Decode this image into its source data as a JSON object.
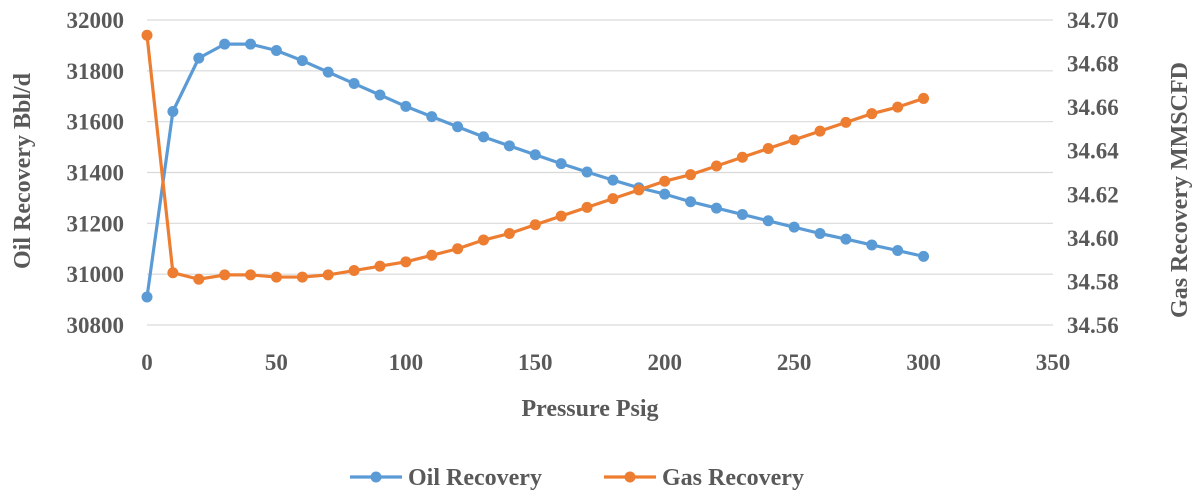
{
  "chart_data": {
    "type": "line",
    "title": "",
    "xlabel": "Pressure Psig",
    "ylabel": "Oil Recovery Bbl/d",
    "y2label": "Gas Recovery MMSCFD",
    "xlim": [
      0,
      350
    ],
    "ylim": [
      30800,
      32000
    ],
    "y2lim": [
      34.56,
      34.7
    ],
    "x_ticks": [
      "0",
      "50",
      "100",
      "150",
      "200",
      "250",
      "300",
      "350"
    ],
    "y_ticks": [
      "30800",
      "31000",
      "31200",
      "31400",
      "31600",
      "31800",
      "32000"
    ],
    "y2_ticks": [
      "34.56",
      "34.58",
      "34.60",
      "34.62",
      "34.64",
      "34.66",
      "34.68",
      "34.70"
    ],
    "grid": "horizontal",
    "legend_position": "bottom",
    "x": [
      0,
      10,
      20,
      30,
      40,
      50,
      60,
      70,
      80,
      90,
      100,
      110,
      120,
      130,
      140,
      150,
      160,
      170,
      180,
      190,
      200,
      210,
      220,
      230,
      240,
      250,
      260,
      270,
      280,
      290,
      300
    ],
    "series": [
      {
        "name": "Oil Recovery",
        "axis": "left",
        "color": "#5B9BD5",
        "values": [
          30910,
          31640,
          31850,
          31905,
          31905,
          31880,
          31840,
          31795,
          31750,
          31705,
          31660,
          31620,
          31580,
          31540,
          31505,
          31470,
          31435,
          31402,
          31370,
          31340,
          31315,
          31285,
          31260,
          31235,
          31210,
          31185,
          31160,
          31138,
          31115,
          31093,
          31070
        ]
      },
      {
        "name": "Gas Recovery",
        "axis": "right",
        "color": "#ED7D31",
        "values": [
          34.693,
          34.584,
          34.581,
          34.583,
          34.583,
          34.582,
          34.582,
          34.583,
          34.585,
          34.587,
          34.589,
          34.592,
          34.595,
          34.599,
          34.602,
          34.606,
          34.61,
          34.614,
          34.618,
          34.622,
          34.626,
          34.629,
          34.633,
          34.637,
          34.641,
          34.645,
          34.649,
          34.653,
          34.657,
          34.66,
          34.664
        ]
      }
    ]
  }
}
